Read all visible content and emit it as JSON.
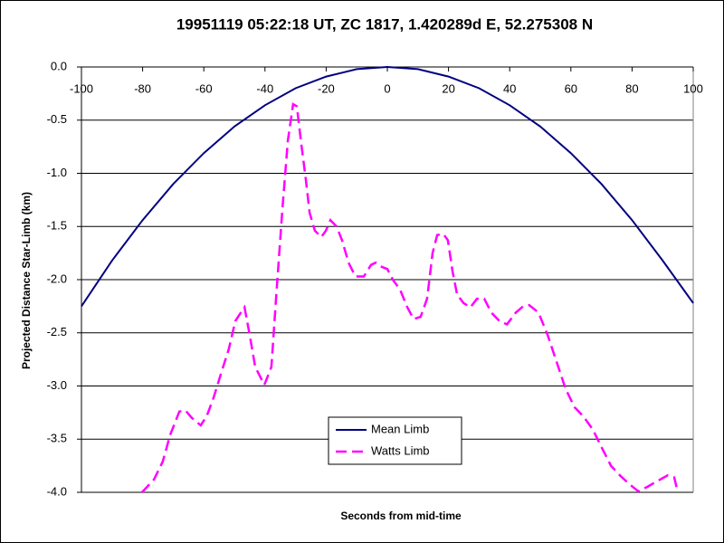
{
  "chart_data": {
    "type": "line",
    "title": "19951119 05:22:18 UT, ZC 1817, 1.420289d E, 52.275308 N",
    "x_label": "Seconds from mid-time",
    "y_label": "Projected Distance Star-Limb (km)",
    "xlim": [
      -100,
      100
    ],
    "xticks": [
      -100,
      -80,
      -60,
      -40,
      -20,
      0,
      20,
      40,
      60,
      80,
      100
    ],
    "ylim": [
      -4,
      0
    ],
    "yticks": [
      {
        "value": 0,
        "label": "0.0"
      },
      -0.5,
      {
        "value": -1,
        "label": "-1.0"
      },
      -1.5,
      {
        "value": -2,
        "label": "-2.0"
      },
      -2.5,
      {
        "value": -3,
        "label": "-3.0"
      },
      -3.5,
      {
        "value": -4,
        "label": "-4.0"
      }
    ],
    "grid": true,
    "legend": "bottom",
    "series": [
      {
        "name": "Mean Limb",
        "color": "#000080",
        "dash": false,
        "x": [
          -100,
          -90,
          -80,
          -70,
          -60,
          -50,
          -40,
          -30,
          -20,
          -10,
          0,
          10,
          20,
          30,
          40,
          50,
          60,
          70,
          80,
          90,
          100
        ],
        "values": [
          -2.25,
          -1.82,
          -1.44,
          -1.1,
          -0.81,
          -0.56,
          -0.36,
          -0.2,
          -0.09,
          -0.02,
          0,
          -0.02,
          -0.09,
          -0.2,
          -0.36,
          -0.56,
          -0.81,
          -1.1,
          -1.44,
          -1.82,
          -2.22
        ]
      },
      {
        "name": "Watts Limb",
        "color": "#ff00ff",
        "dash": true,
        "x": [
          -80.2,
          -76.3,
          -73.4,
          -71,
          -68,
          -66,
          -63.9,
          -61,
          -59,
          -56.8,
          -54.1,
          -51.8,
          -49.7,
          -47.9,
          -46.7,
          -45,
          -43.2,
          -40.2,
          -37.9,
          -36.4,
          -34.3,
          -32.5,
          -30.8,
          -29.6,
          -28.1,
          -26.6,
          -25.4,
          -23.7,
          -21.6,
          -20.1,
          -18.6,
          -16.6,
          -14.8,
          -12.7,
          -10.4,
          -7.7,
          -5.3,
          -3.8,
          -1.8,
          0,
          2,
          4.1,
          6.5,
          8.6,
          10.9,
          13,
          14.8,
          16.3,
          18.3,
          19.8,
          21.3,
          22.8,
          24.9,
          27.2,
          29.3,
          31.7,
          34,
          36.7,
          39.1,
          42,
          44.4,
          46.4,
          49.4,
          52.4,
          55.3,
          58.3,
          61.2,
          64.2,
          67.2,
          70.1,
          73.1,
          76,
          79,
          82,
          84.9,
          87.9,
          91.7,
          93.8,
          94.7
        ],
        "values": [
          -4,
          -3.88,
          -3.71,
          -3.46,
          -3.24,
          -3.23,
          -3.3,
          -3.37,
          -3.28,
          -3.11,
          -2.86,
          -2.65,
          -2.39,
          -2.31,
          -2.26,
          -2.52,
          -2.82,
          -2.99,
          -2.82,
          -2.18,
          -1.33,
          -0.69,
          -0.35,
          -0.37,
          -0.73,
          -1.07,
          -1.37,
          -1.54,
          -1.6,
          -1.54,
          -1.44,
          -1.5,
          -1.63,
          -1.84,
          -1.97,
          -1.97,
          -1.86,
          -1.84,
          -1.88,
          -1.9,
          -2.01,
          -2.09,
          -2.26,
          -2.37,
          -2.35,
          -2.18,
          -1.75,
          -1.58,
          -1.57,
          -1.63,
          -1.92,
          -2.14,
          -2.22,
          -2.26,
          -2.18,
          -2.18,
          -2.31,
          -2.39,
          -2.42,
          -2.31,
          -2.25,
          -2.24,
          -2.31,
          -2.52,
          -2.77,
          -3.03,
          -3.2,
          -3.29,
          -3.41,
          -3.58,
          -3.75,
          -3.84,
          -3.92,
          -3.99,
          -3.95,
          -3.9,
          -3.84,
          -3.86,
          -3.97
        ]
      }
    ]
  }
}
